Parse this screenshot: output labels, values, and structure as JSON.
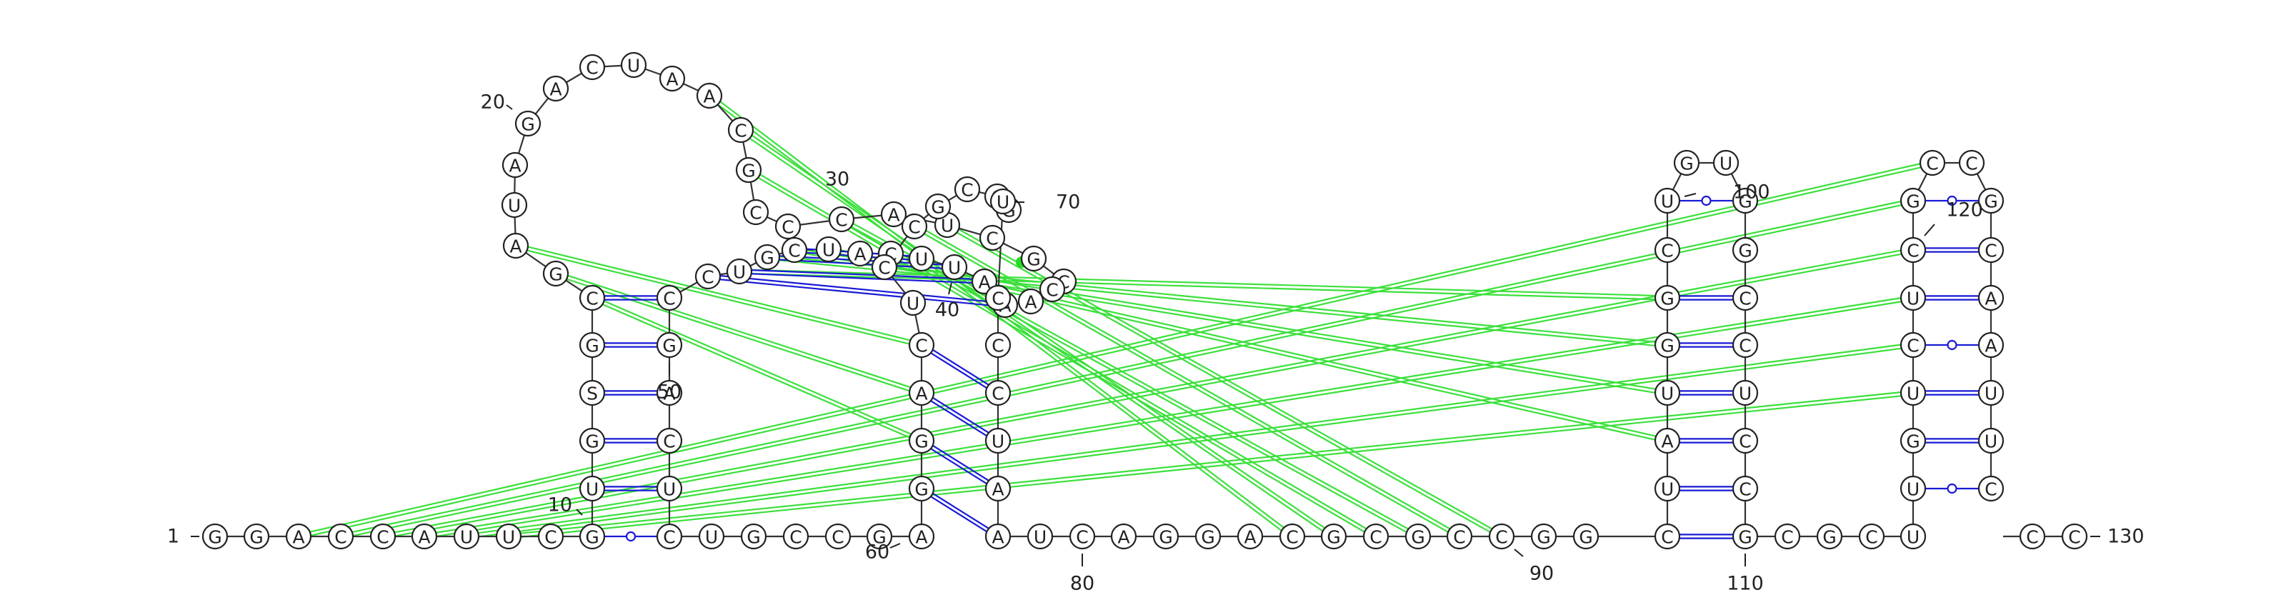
{
  "diagram": {
    "type": "RNA secondary structure with pseudoknots",
    "colors": {
      "backbone": "#333333",
      "canonical_pair": "#1a1ad6",
      "wobble_pair": "#1a1ad6",
      "pseudoknot_pair": "#3be03b",
      "nucleotide_fill": "#ffffff",
      "nucleotide_stroke": "#222222"
    },
    "sequence": [
      "G",
      "G",
      "A",
      "C",
      "C",
      "A",
      "U",
      "U",
      "C",
      "G",
      "U",
      "G",
      "S",
      "G",
      "C",
      "G",
      "A",
      "U",
      "A",
      "G",
      "A",
      "C",
      "U",
      "A",
      "A",
      "C",
      "G",
      "C",
      "C",
      "C",
      "A",
      "U",
      "C",
      "G",
      "C",
      "C",
      "A",
      "A",
      "A",
      "U",
      "U",
      "C",
      "A",
      "U",
      "C",
      "G",
      "U",
      "C",
      "C",
      "G",
      "A",
      "C",
      "U",
      "C",
      "U",
      "G",
      "C",
      "C",
      "G",
      "A",
      "G",
      "G",
      "A",
      "C",
      "U",
      "C",
      "C",
      "G",
      "C",
      "C",
      "G",
      "U",
      "C",
      "C",
      "C",
      "U",
      "A",
      "A",
      "U",
      "C",
      "A",
      "G",
      "G",
      "A",
      "C",
      "G",
      "C",
      "G",
      "C",
      "C",
      "G",
      "G",
      "C",
      "U",
      "A",
      "U",
      "G",
      "G",
      "C",
      "U",
      "G",
      "U",
      "G",
      "G",
      "C",
      "C",
      "U",
      "C",
      "C",
      "G",
      "C",
      "G",
      "C",
      "U",
      "U",
      "G",
      "U",
      "C",
      "U",
      "C",
      "G",
      "C",
      "C",
      "G",
      "C",
      "A",
      "A",
      "U",
      "U",
      "C"
    ],
    "number_labels": [
      {
        "nt": 1,
        "text": "1"
      },
      {
        "nt": 10,
        "text": "10"
      },
      {
        "nt": 20,
        "text": "20"
      },
      {
        "nt": 30,
        "text": "30"
      },
      {
        "nt": 40,
        "text": "40"
      },
      {
        "nt": 50,
        "text": "50"
      },
      {
        "nt": 60,
        "text": "60"
      },
      {
        "nt": 70,
        "text": "70"
      },
      {
        "nt": 80,
        "text": "80"
      },
      {
        "nt": 90,
        "text": "90"
      },
      {
        "nt": 100,
        "text": "100"
      },
      {
        "nt": 110,
        "text": "110"
      },
      {
        "nt": 120,
        "text": "120"
      },
      {
        "nt": 130,
        "text": "130"
      }
    ]
  }
}
